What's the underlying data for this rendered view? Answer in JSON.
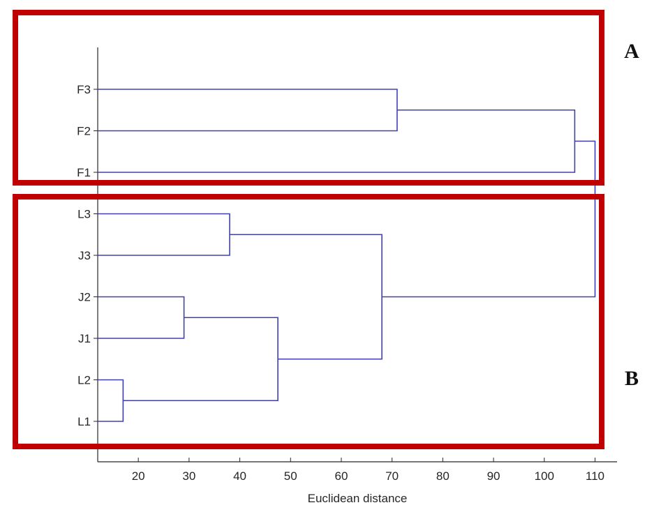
{
  "chart_data": {
    "type": "dendrogram",
    "xlabel": "Euclidean distance",
    "ylabel": "",
    "xlim": [
      12,
      112
    ],
    "x_ticks": [
      20,
      30,
      40,
      50,
      60,
      70,
      80,
      90,
      100,
      110
    ],
    "leaves": [
      "F3",
      "F2",
      "F1",
      "L3",
      "J3",
      "J2",
      "J1",
      "L2",
      "L1"
    ],
    "merges": [
      {
        "left": "L2",
        "right": "L1",
        "height": 17
      },
      {
        "left": "J2",
        "right": "J1",
        "height": 29
      },
      {
        "left": "L3",
        "right": "J3",
        "height": 38
      },
      {
        "left": "J2+J1",
        "right": "L2+L1",
        "height": 47.5
      },
      {
        "left": "L3+J3",
        "right": "J2+J1+L2+L1",
        "height": 68
      },
      {
        "left": "F3",
        "right": "F2",
        "height": 71
      },
      {
        "left": "F3+F2",
        "right": "F1",
        "height": 106
      },
      {
        "left": "F3+F2+F1",
        "right": "L3+J3+J2+J1+L2+L1",
        "height": 110
      }
    ],
    "groups": [
      {
        "label": "A",
        "leaves": [
          "F3",
          "F2",
          "F1"
        ],
        "color": "#c00000"
      },
      {
        "label": "B",
        "leaves": [
          "L3",
          "J3",
          "J2",
          "J1",
          "L2",
          "L1"
        ],
        "color": "#c00000"
      }
    ],
    "line_color": "#4040b0",
    "grid": false
  }
}
